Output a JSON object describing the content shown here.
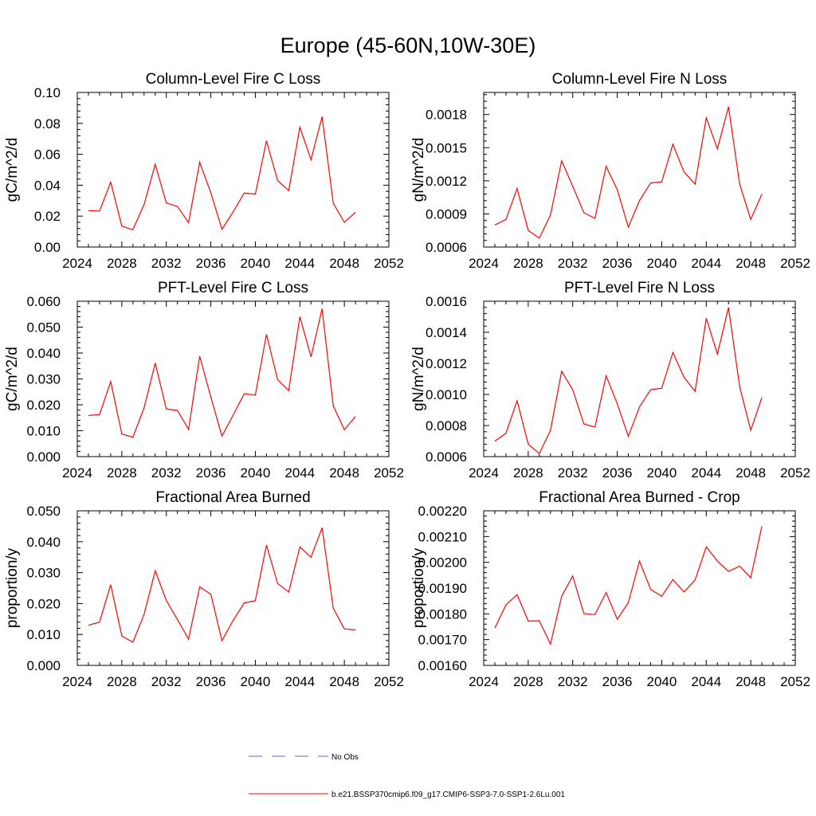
{
  "figure": {
    "title": "Europe (45-60N,10W-30E)",
    "legend": [
      {
        "label": "No Obs",
        "color": "#6a6ab4",
        "dash": true
      },
      {
        "label": "b.e21.BSSP370cmip6.f09_g17.CMIP6-SSP3-7.0-SSP1-2.6Lu.001",
        "color": "#ff0000",
        "dash": false
      }
    ]
  },
  "chart_data": [
    {
      "type": "line",
      "title": "Column-Level Fire C Loss",
      "ylabel": "gC/m^2/d",
      "xlim": [
        2024,
        2052
      ],
      "xticks": [
        "2024",
        "2028",
        "2032",
        "2036",
        "2040",
        "2044",
        "2048",
        "2052"
      ],
      "ylim": [
        0.0,
        0.1
      ],
      "yticks": [
        "0.00",
        "0.02",
        "0.04",
        "0.06",
        "0.08",
        "0.10"
      ],
      "grid": false,
      "series": [
        {
          "color": "#ff0000",
          "x": [
            2025,
            2026,
            2027,
            2028,
            2029,
            2030,
            2031,
            2032,
            2033,
            2034,
            2035,
            2036,
            2037,
            2038,
            2039,
            2040,
            2041,
            2042,
            2043,
            2044,
            2045,
            2046,
            2047,
            2048,
            2049
          ],
          "values": [
            0.0235,
            0.0233,
            0.042,
            0.0135,
            0.0112,
            0.0275,
            0.0535,
            0.0285,
            0.0262,
            0.0158,
            0.0548,
            0.035,
            0.0115,
            0.0227,
            0.035,
            0.0342,
            0.0687,
            0.043,
            0.0365,
            0.0775,
            0.0565,
            0.0843,
            0.0283,
            0.016,
            0.0224
          ]
        }
      ]
    },
    {
      "type": "line",
      "title": "Column-Level Fire N Loss",
      "ylabel": "gN/m^2/d",
      "xlim": [
        2024,
        2052
      ],
      "xticks": [
        "2024",
        "2028",
        "2032",
        "2036",
        "2040",
        "2044",
        "2048",
        "2052"
      ],
      "ylim": [
        0.0006,
        0.002
      ],
      "yticks": [
        "0.0006",
        "0.0009",
        "0.0012",
        "0.0015",
        "0.0018"
      ],
      "ytick_values": [
        0.0006,
        0.0009,
        0.0012,
        0.0015,
        0.0018
      ],
      "grid": false,
      "series": [
        {
          "color": "#ff0000",
          "x": [
            2025,
            2026,
            2027,
            2028,
            2029,
            2030,
            2031,
            2032,
            2033,
            2034,
            2035,
            2036,
            2037,
            2038,
            2039,
            2040,
            2041,
            2042,
            2043,
            2044,
            2045,
            2046,
            2047,
            2048,
            2049
          ],
          "values": [
            0.0008,
            0.00085,
            0.00113,
            0.00075,
            0.00068,
            0.00089,
            0.00138,
            0.00115,
            0.00091,
            0.00086,
            0.00133,
            0.00112,
            0.00078,
            0.00102,
            0.00118,
            0.00119,
            0.00153,
            0.00128,
            0.00117,
            0.00177,
            0.00149,
            0.00187,
            0.00117,
            0.00085,
            0.00108
          ]
        }
      ]
    },
    {
      "type": "line",
      "title": "PFT-Level Fire C Loss",
      "ylabel": "gC/m^2/d",
      "xlim": [
        2024,
        2052
      ],
      "xticks": [
        "2024",
        "2028",
        "2032",
        "2036",
        "2040",
        "2044",
        "2048",
        "2052"
      ],
      "ylim": [
        0.0,
        0.06
      ],
      "yticks": [
        "0.000",
        "0.010",
        "0.020",
        "0.030",
        "0.040",
        "0.050",
        "0.060"
      ],
      "grid": false,
      "series": [
        {
          "color": "#ff0000",
          "x": [
            2025,
            2026,
            2027,
            2028,
            2029,
            2030,
            2031,
            2032,
            2033,
            2034,
            2035,
            2036,
            2037,
            2038,
            2039,
            2040,
            2041,
            2042,
            2043,
            2044,
            2045,
            2046,
            2047,
            2048,
            2049
          ],
          "values": [
            0.0159,
            0.0162,
            0.029,
            0.0087,
            0.0075,
            0.0188,
            0.0361,
            0.0184,
            0.0178,
            0.0105,
            0.0388,
            0.023,
            0.0079,
            0.016,
            0.0243,
            0.0237,
            0.0472,
            0.0297,
            0.0255,
            0.054,
            0.0385,
            0.0571,
            0.0196,
            0.0104,
            0.0155
          ]
        }
      ]
    },
    {
      "type": "line",
      "title": "PFT-Level Fire N Loss",
      "ylabel": "gN/m^2/d",
      "xlim": [
        2024,
        2052
      ],
      "xticks": [
        "2024",
        "2028",
        "2032",
        "2036",
        "2040",
        "2044",
        "2048",
        "2052"
      ],
      "ylim": [
        0.0006,
        0.0016
      ],
      "yticks": [
        "0.0006",
        "0.0008",
        "0.0010",
        "0.0012",
        "0.0014",
        "0.0016"
      ],
      "grid": false,
      "series": [
        {
          "color": "#ff0000",
          "x": [
            2025,
            2026,
            2027,
            2028,
            2029,
            2030,
            2031,
            2032,
            2033,
            2034,
            2035,
            2036,
            2037,
            2038,
            2039,
            2040,
            2041,
            2042,
            2043,
            2044,
            2045,
            2046,
            2047,
            2048,
            2049
          ],
          "values": [
            0.0007,
            0.00075,
            0.00096,
            0.00068,
            0.00062,
            0.00077,
            0.00115,
            0.00103,
            0.00081,
            0.00079,
            0.00112,
            0.00094,
            0.00073,
            0.00092,
            0.00103,
            0.00104,
            0.00127,
            0.00111,
            0.00102,
            0.00149,
            0.00126,
            0.00156,
            0.00105,
            0.00077,
            0.00098
          ]
        }
      ]
    },
    {
      "type": "line",
      "title": "Fractional Area Burned",
      "ylabel": "proportion/y",
      "xlim": [
        2024,
        2052
      ],
      "xticks": [
        "2024",
        "2028",
        "2032",
        "2036",
        "2040",
        "2044",
        "2048",
        "2052"
      ],
      "ylim": [
        0.0,
        0.05
      ],
      "yticks": [
        "0.000",
        "0.010",
        "0.020",
        "0.030",
        "0.040",
        "0.050"
      ],
      "grid": false,
      "series": [
        {
          "color": "#ff0000",
          "x": [
            2025,
            2026,
            2027,
            2028,
            2029,
            2030,
            2031,
            2032,
            2033,
            2034,
            2035,
            2036,
            2037,
            2038,
            2039,
            2040,
            2041,
            2042,
            2043,
            2044,
            2045,
            2046,
            2047,
            2048,
            2049
          ],
          "values": [
            0.013,
            0.014,
            0.0261,
            0.0095,
            0.0075,
            0.0165,
            0.0306,
            0.021,
            0.0148,
            0.0085,
            0.0254,
            0.023,
            0.008,
            0.0145,
            0.0202,
            0.0209,
            0.0389,
            0.0265,
            0.0237,
            0.0383,
            0.035,
            0.0445,
            0.0185,
            0.0118,
            0.0115
          ]
        }
      ]
    },
    {
      "type": "line",
      "title": "Fractional Area Burned - Crop",
      "ylabel": "proportion/y",
      "xlim": [
        2024,
        2052
      ],
      "xticks": [
        "2024",
        "2028",
        "2032",
        "2036",
        "2040",
        "2044",
        "2048",
        "2052"
      ],
      "ylim": [
        0.0016,
        0.0022
      ],
      "yticks": [
        "0.00160",
        "0.00170",
        "0.00180",
        "0.00190",
        "0.00200",
        "0.00210",
        "0.00220"
      ],
      "grid": false,
      "series": [
        {
          "color": "#ff0000",
          "x": [
            2025,
            2026,
            2027,
            2028,
            2029,
            2030,
            2031,
            2032,
            2033,
            2034,
            2035,
            2036,
            2037,
            2038,
            2039,
            2040,
            2041,
            2042,
            2043,
            2044,
            2045,
            2046,
            2047,
            2048,
            2049
          ],
          "values": [
            0.001745,
            0.001835,
            0.001875,
            0.001772,
            0.001773,
            0.001683,
            0.001868,
            0.001947,
            0.001801,
            0.001797,
            0.001883,
            0.001779,
            0.001844,
            0.002005,
            0.001895,
            0.001868,
            0.001933,
            0.001885,
            0.001932,
            0.00206,
            0.002005,
            0.001965,
            0.001985,
            0.00194,
            0.00214
          ]
        }
      ]
    }
  ]
}
